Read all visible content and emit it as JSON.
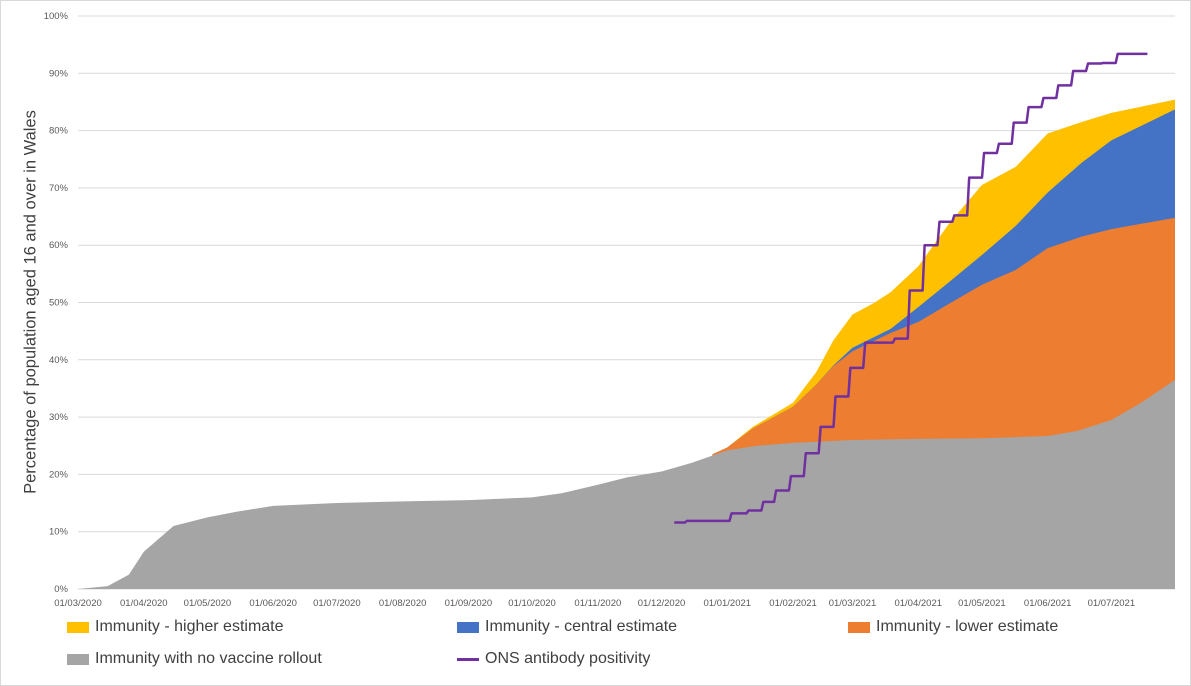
{
  "chart_data": {
    "type": "area",
    "title": "",
    "xlabel": "",
    "ylabel": "Percentage of population aged 16 and over in Wales",
    "xlim": [
      "2020-03-01",
      "2021-07-31"
    ],
    "ylim": [
      0,
      100
    ],
    "y_ticks": [
      "0%",
      "10%",
      "20%",
      "30%",
      "40%",
      "50%",
      "60%",
      "70%",
      "80%",
      "90%",
      "100%"
    ],
    "x_ticks": [
      {
        "date": "2020-03-01",
        "label": "01/03/2020"
      },
      {
        "date": "2020-04-01",
        "label": "01/04/2020"
      },
      {
        "date": "2020-05-01",
        "label": "01/05/2020"
      },
      {
        "date": "2020-06-01",
        "label": "01/06/2020"
      },
      {
        "date": "2020-07-01",
        "label": "01/07/2020"
      },
      {
        "date": "2020-08-01",
        "label": "01/08/2020"
      },
      {
        "date": "2020-09-01",
        "label": "01/09/2020"
      },
      {
        "date": "2020-10-01",
        "label": "01/10/2020"
      },
      {
        "date": "2020-11-01",
        "label": "01/11/2020"
      },
      {
        "date": "2020-12-01",
        "label": "01/12/2020"
      },
      {
        "date": "2021-01-01",
        "label": "01/01/2021"
      },
      {
        "date": "2021-02-01",
        "label": "01/02/2021"
      },
      {
        "date": "2021-03-01",
        "label": "01/03/2021"
      },
      {
        "date": "2021-04-01",
        "label": "01/04/2021"
      },
      {
        "date": "2021-05-01",
        "label": "01/05/2021"
      },
      {
        "date": "2021-06-01",
        "label": "01/06/2021"
      },
      {
        "date": "2021-07-01",
        "label": "01/07/2021"
      }
    ],
    "grid": true,
    "legend_position": "bottom",
    "series": [
      {
        "name": "Immunity - higher estimate",
        "kind": "area",
        "color": "#ffc000",
        "points": [
          [
            "2020-12-25",
            23.5
          ],
          [
            "2021-01-01",
            24.7
          ],
          [
            "2021-01-13",
            28.3
          ],
          [
            "2021-02-01",
            32.5
          ],
          [
            "2021-02-12",
            37.9
          ],
          [
            "2021-02-20",
            43.4
          ],
          [
            "2021-03-01",
            47.9
          ],
          [
            "2021-03-11",
            49.9
          ],
          [
            "2021-03-19",
            51.8
          ],
          [
            "2021-04-01",
            56.3
          ],
          [
            "2021-04-16",
            64.0
          ],
          [
            "2021-05-01",
            70.5
          ],
          [
            "2021-05-17",
            73.7
          ],
          [
            "2021-06-01",
            79.5
          ],
          [
            "2021-06-17",
            81.5
          ],
          [
            "2021-07-01",
            83.1
          ],
          [
            "2021-07-31",
            85.4
          ]
        ]
      },
      {
        "name": "Immunity - central estimate",
        "kind": "area",
        "color": "#4472c4",
        "points": [
          [
            "2020-12-25",
            23.5
          ],
          [
            "2021-01-01",
            24.7
          ],
          [
            "2021-01-13",
            28.0
          ],
          [
            "2021-02-01",
            31.8
          ],
          [
            "2021-02-12",
            35.7
          ],
          [
            "2021-02-20",
            39.0
          ],
          [
            "2021-03-01",
            42.1
          ],
          [
            "2021-03-19",
            45.4
          ],
          [
            "2021-04-01",
            49.2
          ],
          [
            "2021-04-16",
            53.7
          ],
          [
            "2021-05-01",
            58.3
          ],
          [
            "2021-05-17",
            63.4
          ],
          [
            "2021-06-01",
            69.2
          ],
          [
            "2021-06-17",
            74.4
          ],
          [
            "2021-07-01",
            78.3
          ],
          [
            "2021-07-31",
            83.7
          ]
        ]
      },
      {
        "name": "Immunity - lower estimate",
        "kind": "area",
        "color": "#ed7d31",
        "points": [
          [
            "2020-12-25",
            23.5
          ],
          [
            "2021-01-01",
            24.7
          ],
          [
            "2021-01-13",
            28.0
          ],
          [
            "2021-02-01",
            31.8
          ],
          [
            "2021-02-12",
            35.7
          ],
          [
            "2021-02-20",
            38.9
          ],
          [
            "2021-03-01",
            41.5
          ],
          [
            "2021-03-19",
            44.7
          ],
          [
            "2021-04-01",
            46.6
          ],
          [
            "2021-04-16",
            49.9
          ],
          [
            "2021-05-01",
            53.1
          ],
          [
            "2021-05-17",
            55.7
          ],
          [
            "2021-06-01",
            59.5
          ],
          [
            "2021-06-17",
            61.5
          ],
          [
            "2021-07-01",
            62.8
          ],
          [
            "2021-07-31",
            64.8
          ]
        ]
      },
      {
        "name": "Immunity with no vaccine rollout",
        "kind": "area",
        "color": "#a5a5a5",
        "points": [
          [
            "2020-03-01",
            0
          ],
          [
            "2020-03-15",
            0.5
          ],
          [
            "2020-03-25",
            2.5
          ],
          [
            "2020-04-01",
            6.5
          ],
          [
            "2020-04-15",
            11
          ],
          [
            "2020-05-01",
            12.5
          ],
          [
            "2020-05-15",
            13.5
          ],
          [
            "2020-06-01",
            14.5
          ],
          [
            "2020-07-01",
            15
          ],
          [
            "2020-08-01",
            15.3
          ],
          [
            "2020-09-01",
            15.5
          ],
          [
            "2020-10-01",
            16
          ],
          [
            "2020-10-15",
            16.7
          ],
          [
            "2020-11-01",
            18.2
          ],
          [
            "2020-11-15",
            19.5
          ],
          [
            "2020-12-01",
            20.5
          ],
          [
            "2020-12-15",
            22
          ],
          [
            "2021-01-01",
            24.2
          ],
          [
            "2021-01-15",
            25
          ],
          [
            "2021-02-01",
            25.5
          ],
          [
            "2021-03-01",
            26
          ],
          [
            "2021-04-01",
            26.2
          ],
          [
            "2021-05-01",
            26.3
          ],
          [
            "2021-06-01",
            26.7
          ],
          [
            "2021-06-15",
            27.6
          ],
          [
            "2021-07-01",
            29.5
          ],
          [
            "2021-07-15",
            32.5
          ],
          [
            "2021-07-31",
            36.5
          ]
        ]
      },
      {
        "name": "ONS antibody positivity",
        "kind": "step-line",
        "color": "#7030a0",
        "points": [
          [
            "2020-12-07",
            11.6
          ],
          [
            "2020-12-13",
            11.9
          ],
          [
            "2021-01-03",
            13.2
          ],
          [
            "2021-01-11",
            13.7
          ],
          [
            "2021-01-18",
            15.2
          ],
          [
            "2021-01-24",
            17.2
          ],
          [
            "2021-01-31",
            19.7
          ],
          [
            "2021-02-07",
            23.7
          ],
          [
            "2021-02-14",
            28.3
          ],
          [
            "2021-02-21",
            33.6
          ],
          [
            "2021-02-28",
            38.6
          ],
          [
            "2021-03-07",
            43.0
          ],
          [
            "2021-03-21",
            43.7
          ],
          [
            "2021-03-28",
            52.1
          ],
          [
            "2021-04-04",
            60.0
          ],
          [
            "2021-04-11",
            64.1
          ],
          [
            "2021-04-18",
            65.2
          ],
          [
            "2021-04-25",
            71.8
          ],
          [
            "2021-05-02",
            76.1
          ],
          [
            "2021-05-09",
            77.7
          ],
          [
            "2021-05-16",
            81.4
          ],
          [
            "2021-05-23",
            84.1
          ],
          [
            "2021-05-30",
            85.7
          ],
          [
            "2021-06-06",
            87.9
          ],
          [
            "2021-06-13",
            90.4
          ],
          [
            "2021-06-20",
            91.7
          ],
          [
            "2021-06-27",
            91.8
          ],
          [
            "2021-07-04",
            93.4
          ],
          [
            "2021-07-18",
            93.4
          ]
        ]
      }
    ]
  },
  "legend": [
    {
      "label": "Immunity - higher estimate",
      "color": "#ffc000"
    },
    {
      "label": "Immunity - central estimate",
      "color": "#4472c4"
    },
    {
      "label": "Immunity - lower estimate",
      "color": "#ed7d31"
    },
    {
      "label": "Immunity with no vaccine rollout",
      "color": "#a5a5a5"
    },
    {
      "label": "ONS antibody positivity",
      "color": "#7030a0"
    }
  ]
}
